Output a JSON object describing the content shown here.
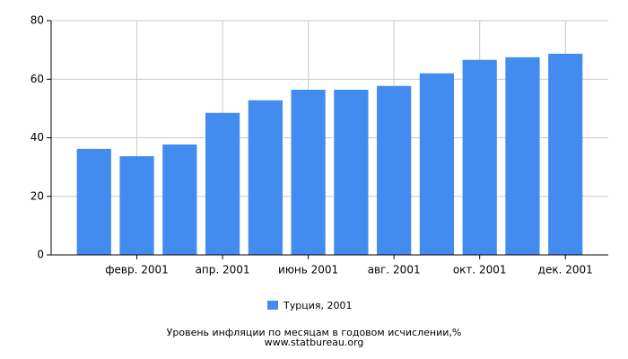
{
  "chart_data": {
    "type": "bar",
    "categories": [
      null,
      "февр. 2001",
      null,
      "апр. 2001",
      null,
      "июнь 2001",
      null,
      "авг. 2001",
      null,
      "окт. 2001",
      null,
      "дек. 2001"
    ],
    "series": [
      {
        "name": "Турция, 2001",
        "color": "#428bef",
        "values": [
          36.2,
          33.7,
          37.7,
          48.5,
          52.8,
          56.4,
          56.4,
          57.7,
          62.0,
          66.6,
          67.5,
          68.7
        ]
      }
    ],
    "ylim": [
      0,
      80
    ],
    "yticks": [
      0,
      20,
      40,
      60,
      80
    ],
    "grid": true,
    "caption": "Уровень инфляции по месяцам в годовом исчислении,%",
    "source": "www.statbureau.org"
  }
}
